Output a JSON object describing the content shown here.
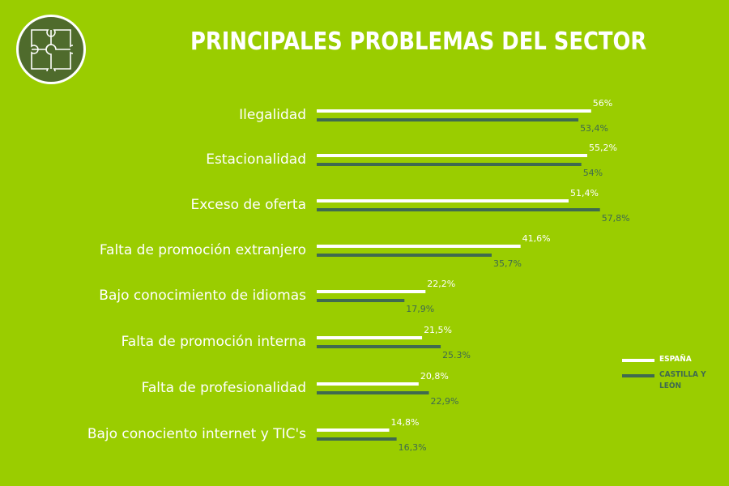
{
  "title": "PRINCIPALES PROBLEMAS DEL SECTOR",
  "logo_icon": "puzzle-icon",
  "colors": {
    "background": "#9acd00",
    "espana": "#ffffff",
    "castilla": "#3f6a4f",
    "category_text": "#ffffff",
    "logo_fill": "#4f6b2c"
  },
  "legend": [
    {
      "label": "ESPAÑA",
      "color": "#ffffff"
    },
    {
      "label": "CASTILLA Y LEÓN",
      "color": "#3f6a4f"
    }
  ],
  "chart_data": {
    "type": "bar",
    "orientation": "horizontal",
    "categories": [
      "Ilegalidad",
      "Estacionalidad",
      "Exceso de oferta",
      "Falta de promoción extranjero",
      "Bajo conocimiento de idiomas",
      "Falta de promoción interna",
      "Falta de profesionalidad",
      "Bajo conociento internet y TIC's"
    ],
    "series": [
      {
        "name": "ESPAÑA",
        "values": [
          56,
          55.2,
          51.4,
          41.6,
          22.2,
          21.5,
          20.8,
          14.8
        ],
        "labels": [
          "56%",
          "55,2%",
          "51,4%",
          "41,6%",
          "22,2%",
          "21,5%",
          "20,8%",
          "14,8%"
        ]
      },
      {
        "name": "CASTILLA Y LEÓN",
        "values": [
          53.4,
          54,
          57.8,
          35.7,
          17.9,
          25.3,
          22.9,
          16.3
        ],
        "labels": [
          "53,4%",
          "54%",
          "57,8%",
          "35,7%",
          "17,9%",
          "25.3%",
          "22,9%",
          "16,3%"
        ]
      }
    ],
    "xlim": [
      0,
      60
    ],
    "grid": false,
    "legend_position": "right"
  }
}
